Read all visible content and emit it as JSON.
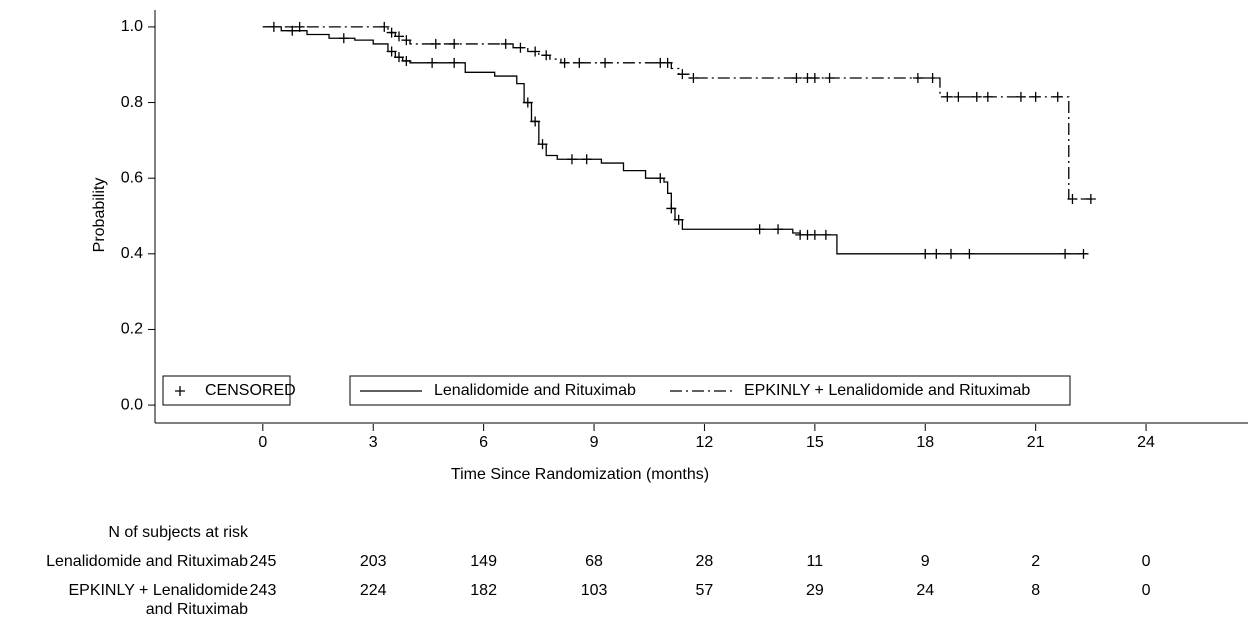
{
  "chart_data": {
    "type": "step",
    "x_label": "Time Since Randomization (months)",
    "y_label": "Probability",
    "xlim": [
      -2.93,
      26.77
    ],
    "ylim": [
      -0.05,
      1.05
    ],
    "xticks": [
      0,
      3,
      6,
      9,
      12,
      15,
      18,
      21,
      24
    ],
    "yticks": [
      {
        "value": 0,
        "label": "0.0"
      },
      0.2,
      0.4,
      0.6,
      0.8,
      {
        "value": 1,
        "label": "1.0"
      }
    ],
    "censor_label": "CENSORED",
    "risk_title": "N of subjects at risk",
    "series": [
      {
        "name": "Lenalidomide and Rituximab",
        "color": "#000000",
        "dash": "none",
        "x": [
          0,
          0.5,
          1.2,
          1.8,
          2.5,
          3.0,
          3.4,
          3.6,
          3.8,
          4.0,
          5.5,
          6.3,
          6.9,
          7.1,
          7.3,
          7.5,
          7.7,
          8.0,
          9.2,
          9.8,
          10.4,
          10.9,
          11.0,
          11.1,
          11.2,
          11.4,
          14.4,
          14.6,
          15.6,
          22.4
        ],
        "values": [
          1.0,
          0.99,
          0.98,
          0.97,
          0.965,
          0.955,
          0.935,
          0.92,
          0.91,
          0.905,
          0.88,
          0.87,
          0.85,
          0.8,
          0.75,
          0.69,
          0.66,
          0.65,
          0.64,
          0.62,
          0.6,
          0.59,
          0.56,
          0.52,
          0.49,
          0.465,
          0.455,
          0.45,
          0.4,
          0.4
        ],
        "censored_x": [
          0.8,
          2.2,
          3.5,
          3.7,
          3.9,
          4.6,
          5.2,
          7.2,
          7.4,
          7.6,
          8.4,
          8.8,
          10.8,
          11.1,
          11.3,
          13.5,
          14.0,
          14.6,
          14.8,
          15.0,
          15.3,
          18.0,
          18.3,
          18.7,
          19.2,
          21.8,
          22.3
        ],
        "censored_values": [
          0.99,
          0.97,
          0.935,
          0.92,
          0.91,
          0.905,
          0.905,
          0.8,
          0.75,
          0.69,
          0.65,
          0.65,
          0.6,
          0.52,
          0.49,
          0.465,
          0.465,
          0.45,
          0.45,
          0.45,
          0.45,
          0.4,
          0.4,
          0.4,
          0.4,
          0.4,
          0.4
        ],
        "at_risk": [
          245,
          203,
          149,
          68,
          28,
          11,
          9,
          2,
          0
        ]
      },
      {
        "name": "EPKINLY + Lenalidomide and Rituximab",
        "color": "#000000",
        "dash": "12 4 2 4",
        "x": [
          0,
          3.4,
          3.6,
          3.8,
          4.0,
          6.8,
          7.2,
          7.5,
          7.8,
          8.1,
          11.1,
          11.3,
          11.6,
          18.4,
          21.9,
          22.5
        ],
        "values": [
          1.0,
          0.985,
          0.975,
          0.965,
          0.955,
          0.945,
          0.935,
          0.925,
          0.915,
          0.905,
          0.89,
          0.875,
          0.865,
          0.815,
          0.545,
          0.545
        ],
        "censored_x": [
          0.3,
          1.0,
          3.3,
          3.5,
          3.7,
          3.9,
          4.7,
          5.2,
          6.6,
          7.0,
          7.4,
          7.7,
          8.2,
          8.6,
          9.3,
          10.8,
          11.0,
          11.4,
          11.7,
          14.5,
          14.8,
          15.0,
          15.4,
          17.8,
          18.2,
          18.6,
          18.9,
          19.4,
          19.7,
          20.6,
          21.0,
          21.6,
          22.0,
          22.5
        ],
        "censored_values": [
          1.0,
          1.0,
          1.0,
          0.985,
          0.975,
          0.965,
          0.955,
          0.955,
          0.955,
          0.945,
          0.935,
          0.925,
          0.905,
          0.905,
          0.905,
          0.905,
          0.905,
          0.875,
          0.865,
          0.865,
          0.865,
          0.865,
          0.865,
          0.865,
          0.865,
          0.815,
          0.815,
          0.815,
          0.815,
          0.815,
          0.815,
          0.815,
          0.545,
          0.545
        ],
        "at_risk": [
          243,
          224,
          182,
          103,
          57,
          29,
          24,
          8,
          0
        ]
      }
    ]
  }
}
